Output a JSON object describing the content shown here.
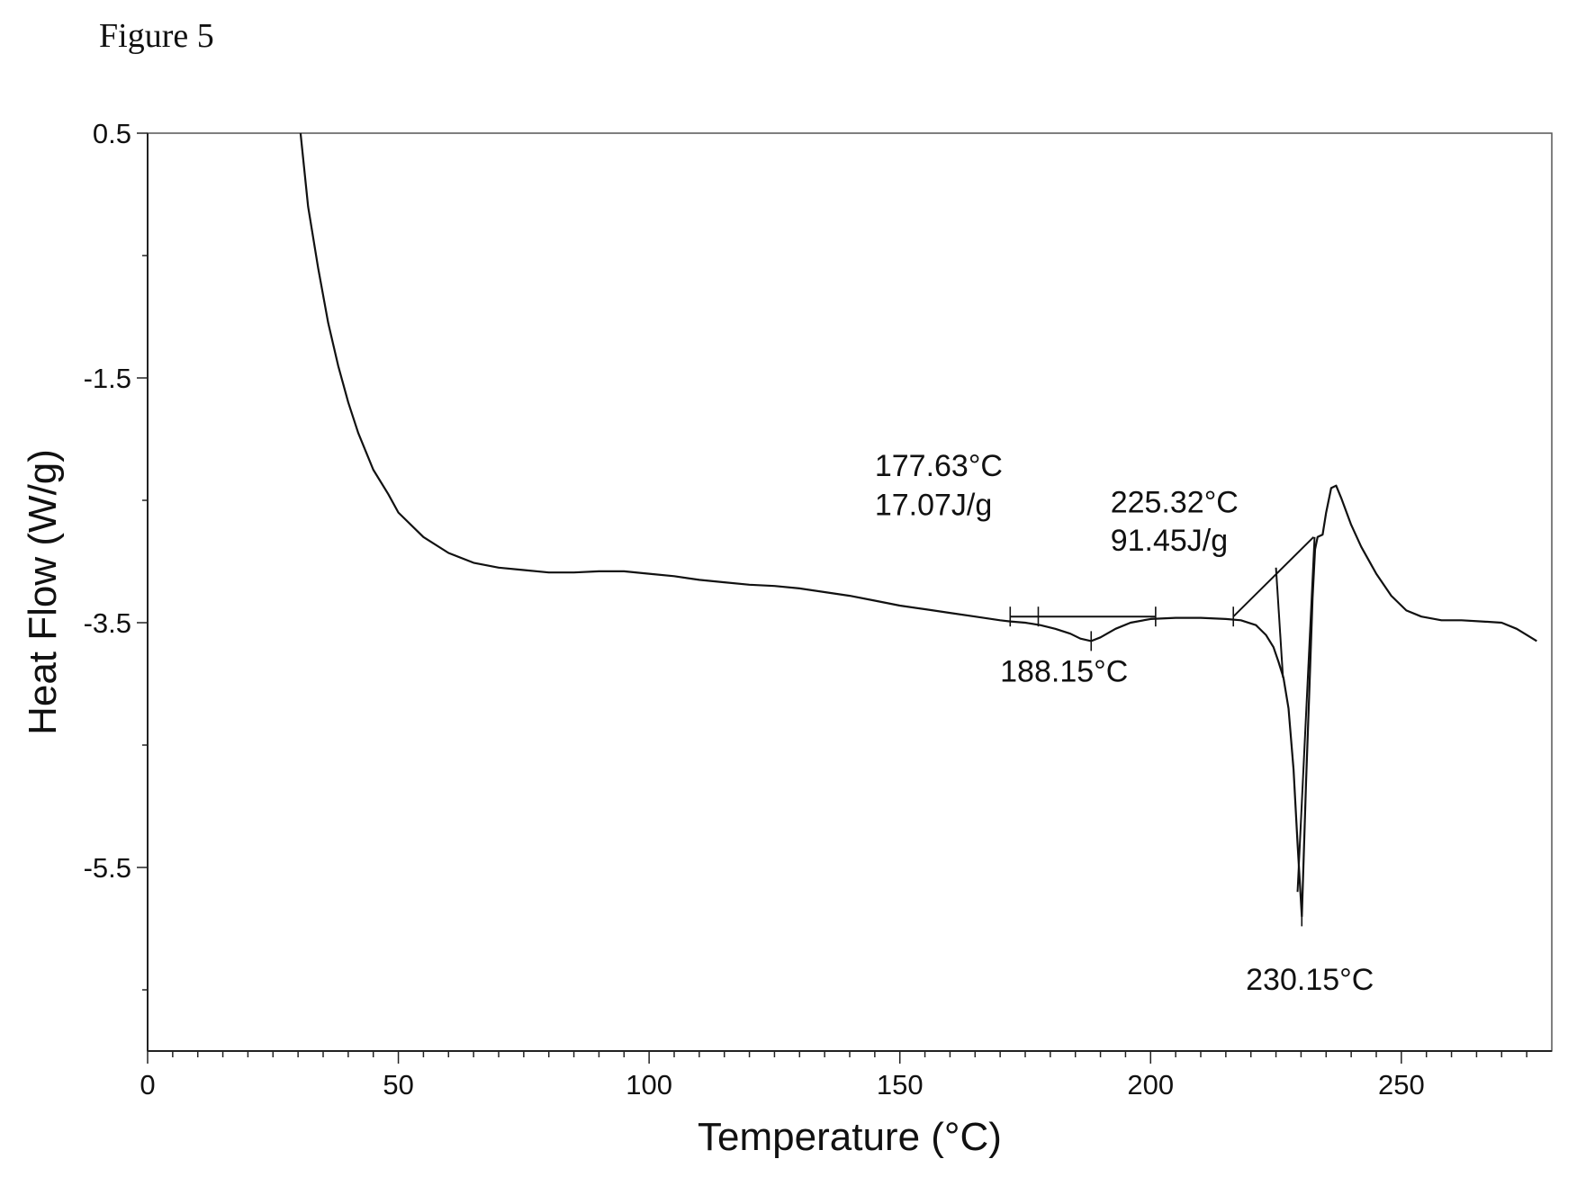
{
  "figure_label": "Figure 5",
  "chart_data": {
    "type": "line",
    "xlabel": "Temperature (°C)",
    "ylabel": "Heat Flow (W/g)",
    "xlim": [
      0,
      280
    ],
    "ylim": [
      -7.0,
      0.5
    ],
    "x_ticks": [
      {
        "value": 0,
        "label": "0"
      },
      {
        "value": 50,
        "label": "50"
      },
      {
        "value": 100,
        "label": "100"
      },
      {
        "value": 150,
        "label": "150"
      },
      {
        "value": 200,
        "label": "200"
      },
      {
        "value": 250,
        "label": "250"
      }
    ],
    "y_ticks": [
      {
        "value": 0.5,
        "label": "0.5"
      },
      {
        "value": -1.5,
        "label": "-1.5"
      },
      {
        "value": -3.5,
        "label": "-3.5"
      },
      {
        "value": -5.5,
        "label": "-5.5"
      }
    ],
    "x_minor_ticks": [
      5,
      10,
      15,
      20,
      25,
      30,
      35,
      40,
      45,
      55,
      60,
      65,
      70,
      75,
      80,
      85,
      90,
      95,
      105,
      110,
      115,
      120,
      125,
      130,
      135,
      140,
      145,
      155,
      160,
      165,
      170,
      175,
      180,
      185,
      190,
      195,
      205,
      210,
      215,
      220,
      225,
      230,
      235,
      240,
      245,
      255,
      260,
      265,
      270,
      275
    ],
    "y_minor_ticks": [
      -0.5,
      -2.5,
      -4.5,
      -6.5
    ],
    "grid": false,
    "series": [
      {
        "points": [
          [
            30.5,
            0.5
          ],
          [
            32,
            -0.1
          ],
          [
            34,
            -0.6
          ],
          [
            36,
            -1.05
          ],
          [
            38,
            -1.4
          ],
          [
            40,
            -1.7
          ],
          [
            42,
            -1.95
          ],
          [
            45,
            -2.25
          ],
          [
            48,
            -2.45
          ],
          [
            50,
            -2.6
          ],
          [
            55,
            -2.8
          ],
          [
            60,
            -2.93
          ],
          [
            65,
            -3.01
          ],
          [
            70,
            -3.05
          ],
          [
            75,
            -3.07
          ],
          [
            80,
            -3.09
          ],
          [
            85,
            -3.09
          ],
          [
            90,
            -3.08
          ],
          [
            95,
            -3.08
          ],
          [
            100,
            -3.1
          ],
          [
            105,
            -3.12
          ],
          [
            110,
            -3.15
          ],
          [
            115,
            -3.17
          ],
          [
            120,
            -3.19
          ],
          [
            125,
            -3.2
          ],
          [
            130,
            -3.22
          ],
          [
            135,
            -3.25
          ],
          [
            140,
            -3.28
          ],
          [
            145,
            -3.32
          ],
          [
            150,
            -3.36
          ],
          [
            155,
            -3.39
          ],
          [
            160,
            -3.42
          ],
          [
            165,
            -3.45
          ],
          [
            170,
            -3.48
          ],
          [
            172,
            -3.49
          ],
          [
            175,
            -3.5
          ],
          [
            178,
            -3.52
          ],
          [
            181,
            -3.55
          ],
          [
            184,
            -3.59
          ],
          [
            186,
            -3.63
          ],
          [
            188.15,
            -3.65
          ],
          [
            190,
            -3.62
          ],
          [
            193,
            -3.55
          ],
          [
            196,
            -3.5
          ],
          [
            200,
            -3.47
          ],
          [
            205,
            -3.46
          ],
          [
            210,
            -3.46
          ],
          [
            215,
            -3.47
          ],
          [
            218,
            -3.48
          ],
          [
            221,
            -3.52
          ],
          [
            223,
            -3.6
          ],
          [
            224.5,
            -3.7
          ],
          [
            225.5,
            -3.82
          ],
          [
            226.5,
            -3.95
          ],
          [
            227.5,
            -4.2
          ],
          [
            228.5,
            -4.7
          ],
          [
            229.3,
            -5.3
          ],
          [
            230.15,
            -5.9
          ],
          [
            231,
            -4.8
          ],
          [
            231.7,
            -4.0
          ],
          [
            232.3,
            -3.3
          ],
          [
            232.8,
            -2.9
          ],
          [
            233.3,
            -2.8
          ],
          [
            234.3,
            -2.78
          ],
          [
            235,
            -2.6
          ],
          [
            236,
            -2.4
          ],
          [
            237,
            -2.38
          ],
          [
            238,
            -2.48
          ],
          [
            240,
            -2.7
          ],
          [
            242,
            -2.88
          ],
          [
            245,
            -3.1
          ],
          [
            248,
            -3.28
          ],
          [
            251,
            -3.4
          ],
          [
            254,
            -3.45
          ],
          [
            258,
            -3.48
          ],
          [
            262,
            -3.48
          ],
          [
            266,
            -3.49
          ],
          [
            270,
            -3.5
          ],
          [
            273,
            -3.55
          ],
          [
            275,
            -3.6
          ],
          [
            277,
            -3.65
          ]
        ]
      }
    ],
    "integration_baselines": [
      {
        "x1": 172,
        "y1": -3.45,
        "x2": 201,
        "y2": -3.45
      },
      {
        "x1": 216.5,
        "y1": -3.45,
        "x2": 232.5,
        "y2": -2.8
      }
    ],
    "tangent_lines": [
      {
        "x1": 225,
        "y1": -3.05,
        "x2": 226.4,
        "y2": -3.95
      },
      {
        "x1": 229.3,
        "y1": -5.7,
        "x2": 232.7,
        "y2": -2.8
      }
    ],
    "markers": [
      {
        "x": 172,
        "y": -3.45
      },
      {
        "x": 177.6,
        "y": -3.45
      },
      {
        "x": 188.15,
        "y": -3.65
      },
      {
        "x": 201,
        "y": -3.45
      },
      {
        "x": 216.5,
        "y": -3.45
      },
      {
        "x": 230.15,
        "y": -5.9
      }
    ],
    "annotations": [
      {
        "id": "onset1_temp",
        "text": "177.63°C",
        "x": 145,
        "y": -2.3
      },
      {
        "id": "onset1_enthalpy",
        "text": "17.07J/g",
        "x": 145,
        "y": -2.62
      },
      {
        "id": "peak1",
        "text": "188.15°C",
        "x": 170,
        "y": -3.98
      },
      {
        "id": "onset2_temp",
        "text": "225.32°C",
        "x": 192,
        "y": -2.6
      },
      {
        "id": "onset2_enthalpy",
        "text": "91.45J/g",
        "x": 192,
        "y": -2.91
      },
      {
        "id": "peak2",
        "text": "230.15°C",
        "x": 219,
        "y": -6.5
      }
    ]
  }
}
